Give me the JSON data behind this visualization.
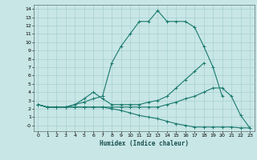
{
  "xlabel": "Humidex (Indice chaleur)",
  "bg_color": "#c8e6e6",
  "grid_color": "#a8d0d0",
  "line_color": "#1a7a6e",
  "xlim": [
    -0.5,
    23.5
  ],
  "ylim": [
    -0.7,
    14.5
  ],
  "xticks": [
    0,
    1,
    2,
    3,
    4,
    5,
    6,
    7,
    8,
    9,
    10,
    11,
    12,
    13,
    14,
    15,
    16,
    17,
    18,
    19,
    20,
    21,
    22,
    23
  ],
  "yticks": [
    0,
    1,
    2,
    3,
    4,
    5,
    6,
    7,
    8,
    9,
    10,
    11,
    12,
    13,
    14
  ],
  "lines": [
    {
      "x": [
        0,
        1,
        2,
        3,
        4,
        5,
        6,
        7,
        8,
        9,
        10,
        11,
        12,
        13,
        14,
        15,
        16,
        17,
        18,
        19,
        20,
        21,
        22,
        23
      ],
      "y": [
        2.5,
        2.2,
        2.2,
        2.2,
        2.5,
        2.8,
        3.2,
        3.5,
        7.5,
        9.5,
        11,
        12.5,
        12.5,
        13.8,
        12.5,
        12.5,
        12.5,
        11.8,
        9.5,
        7.0,
        3.5,
        null,
        null,
        null
      ]
    },
    {
      "x": [
        0,
        1,
        2,
        3,
        4,
        5,
        6,
        7,
        8,
        9,
        10,
        11,
        12,
        13,
        14,
        15,
        16,
        17,
        18,
        19,
        20,
        21,
        22,
        23
      ],
      "y": [
        2.5,
        2.2,
        2.2,
        2.2,
        2.5,
        3.2,
        4.0,
        3.2,
        2.5,
        2.5,
        2.5,
        2.5,
        2.8,
        3.0,
        3.5,
        4.5,
        5.5,
        6.5,
        7.5,
        null,
        null,
        null,
        null,
        null
      ]
    },
    {
      "x": [
        0,
        1,
        2,
        3,
        4,
        5,
        6,
        7,
        8,
        9,
        10,
        11,
        12,
        13,
        14,
        15,
        16,
        17,
        18,
        19,
        20,
        21,
        22,
        23
      ],
      "y": [
        2.5,
        2.2,
        2.2,
        2.2,
        2.2,
        2.2,
        2.2,
        2.2,
        2.2,
        2.2,
        2.2,
        2.2,
        2.2,
        2.2,
        2.5,
        2.8,
        3.2,
        3.5,
        4.0,
        4.5,
        4.5,
        3.5,
        1.2,
        -0.3
      ]
    },
    {
      "x": [
        0,
        1,
        2,
        3,
        4,
        5,
        6,
        7,
        8,
        9,
        10,
        11,
        12,
        13,
        14,
        15,
        16,
        17,
        18,
        19,
        20,
        21,
        22,
        23
      ],
      "y": [
        2.5,
        2.2,
        2.2,
        2.2,
        2.2,
        2.2,
        2.2,
        2.2,
        2.0,
        1.8,
        1.5,
        1.2,
        1.0,
        0.8,
        0.5,
        0.2,
        0.0,
        -0.2,
        -0.2,
        -0.2,
        -0.2,
        -0.2,
        -0.3,
        -0.3
      ]
    }
  ]
}
